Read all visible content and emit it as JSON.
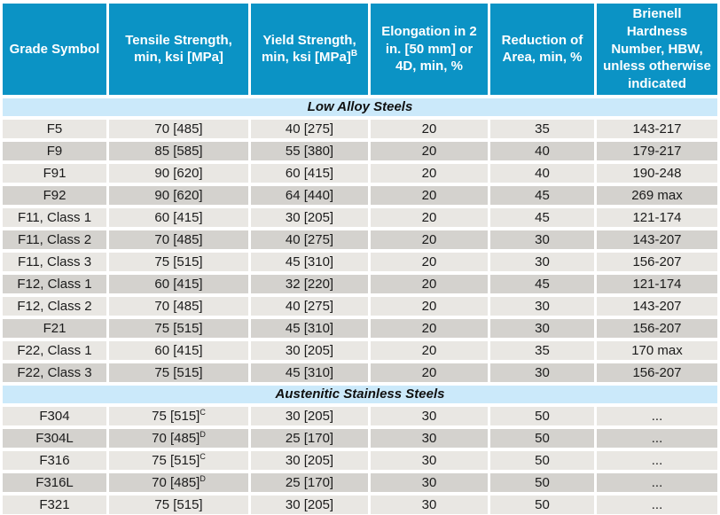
{
  "colors": {
    "background": "#FFFFFF",
    "header_bg": "#0B93C5",
    "header_text": "#FFFFFF",
    "section_bg": "#CBE9FA",
    "section_text": "#101010",
    "row_light": "#E9E7E3",
    "row_dark": "#D4D2CE",
    "cell_text": "#1B1B1B"
  },
  "chart_data": {
    "type": "table",
    "columns": [
      {
        "label": "Grade Symbol"
      },
      {
        "label": "Tensile Strength, min, ksi [MPa]"
      },
      {
        "label": "Yield Strength, min, ksi [MPa]",
        "sup": "B"
      },
      {
        "label": "Elongation in 2 in. [50 mm] or 4D, min, %"
      },
      {
        "label": "Reduction of Area, min, %"
      },
      {
        "label": "Brienell Hardness Number, HBW, unless otherwise indicated"
      }
    ],
    "sections": [
      {
        "title": "Low Alloy Steels",
        "rows": [
          [
            "F5",
            "70 [485]",
            "40 [275]",
            "20",
            "35",
            "143-217"
          ],
          [
            "F9",
            "85 [585]",
            "55 [380]",
            "20",
            "40",
            "179-217"
          ],
          [
            "F91",
            "90 [620]",
            "60 [415]",
            "20",
            "40",
            "190-248"
          ],
          [
            "F92",
            "90 [620]",
            "64 [440]",
            "20",
            "45",
            "269 max"
          ],
          [
            "F11, Class 1",
            "60 [415]",
            "30 [205]",
            "20",
            "45",
            "121-174"
          ],
          [
            "F11, Class 2",
            "70 [485]",
            "40 [275]",
            "20",
            "30",
            "143-207"
          ],
          [
            "F11, Class 3",
            "75 [515]",
            "45 [310]",
            "20",
            "30",
            "156-207"
          ],
          [
            "F12, Class 1",
            "60 [415]",
            "32 [220]",
            "20",
            "45",
            "121-174"
          ],
          [
            "F12, Class 2",
            "70 [485]",
            "40 [275]",
            "20",
            "30",
            "143-207"
          ],
          [
            "F21",
            "75 [515]",
            "45 [310]",
            "20",
            "30",
            "156-207"
          ],
          [
            "F22, Class 1",
            "60 [415]",
            "30 [205]",
            "20",
            "35",
            "170 max"
          ],
          [
            "F22, Class 3",
            "75 [515]",
            "45 [310]",
            "20",
            "30",
            "156-207"
          ]
        ]
      },
      {
        "title": "Austenitic Stainless Steels",
        "rows": [
          [
            "F304",
            {
              "text": "75 [515]",
              "sup": "C"
            },
            "30 [205]",
            "30",
            "50",
            "..."
          ],
          [
            "F304L",
            {
              "text": "70 [485]",
              "sup": "D"
            },
            "25 [170]",
            "30",
            "50",
            "..."
          ],
          [
            "F316",
            {
              "text": "75 [515]",
              "sup": "C"
            },
            "30 [205]",
            "30",
            "50",
            "..."
          ],
          [
            "F316L",
            {
              "text": "70 [485]",
              "sup": "D"
            },
            "25 [170]",
            "30",
            "50",
            "..."
          ],
          [
            "F321",
            "75 [515]",
            "30 [205]",
            "30",
            "50",
            "..."
          ]
        ]
      }
    ]
  }
}
